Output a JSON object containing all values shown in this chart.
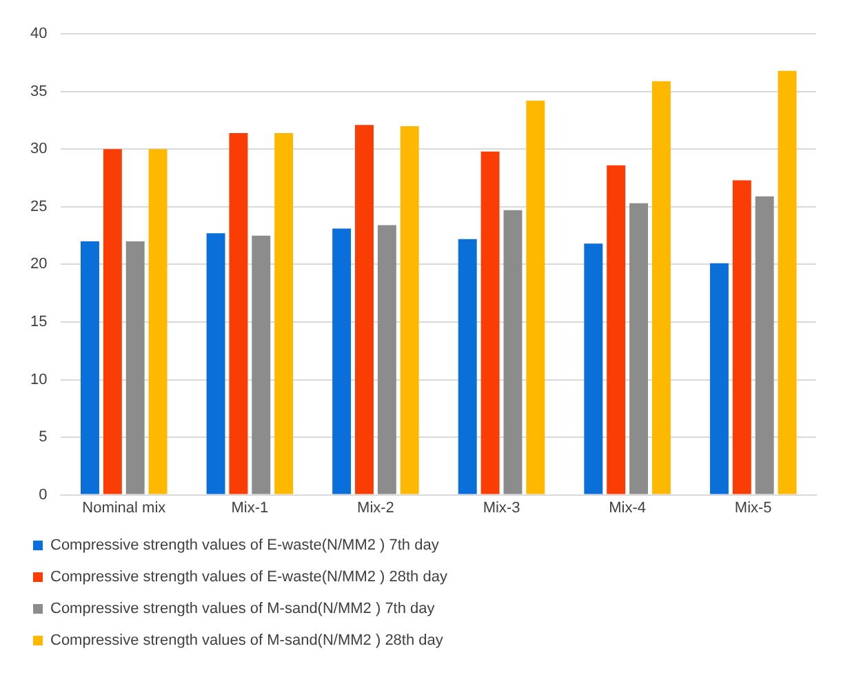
{
  "chart_data": {
    "type": "bar",
    "categories": [
      "Nominal mix",
      "Mix-1",
      "Mix-2",
      "Mix-3",
      "Mix-4",
      "Mix-5"
    ],
    "series": [
      {
        "name": "Compressive strength values of E-waste(N/MM2 ) 7th day",
        "color": "#0a6fd8",
        "values": [
          22,
          22.7,
          23.1,
          22.2,
          21.8,
          20.1
        ]
      },
      {
        "name": "Compressive strength values of E-waste(N/MM2 ) 28th day",
        "color": "#fa3c05",
        "values": [
          30,
          31.4,
          32.1,
          29.8,
          28.6,
          27.3
        ]
      },
      {
        "name": "Compressive strength values of M-sand(N/MM2 ) 7th day",
        "color": "#8c8c8c",
        "values": [
          22,
          22.5,
          23.4,
          24.7,
          25.3,
          25.9
        ]
      },
      {
        "name": "Compressive strength values of M-sand(N/MM2 ) 28th day",
        "color": "#ffb800",
        "values": [
          30,
          31.4,
          32,
          34.2,
          35.9,
          36.8
        ]
      }
    ],
    "ylim": [
      0,
      40
    ],
    "yticks": [
      0,
      5,
      10,
      15,
      20,
      25,
      30,
      35,
      40
    ],
    "grid": "y",
    "legend": "bottom"
  }
}
